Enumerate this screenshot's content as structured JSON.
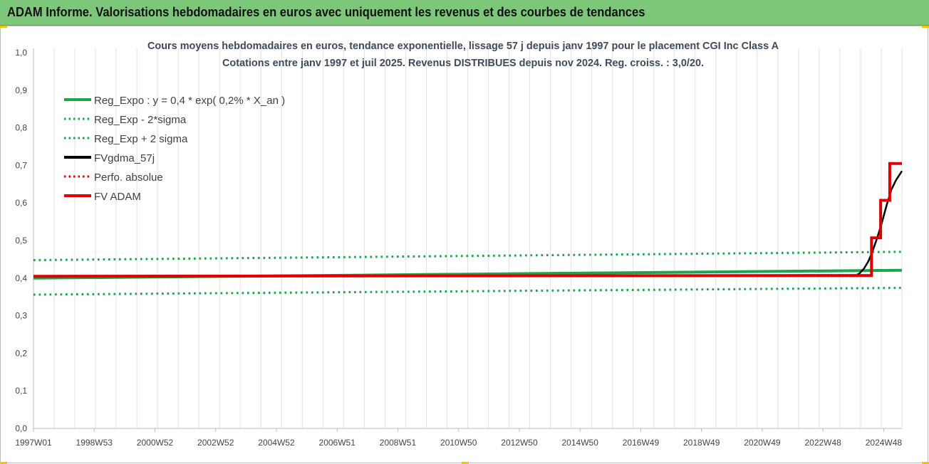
{
  "banner": {
    "title": "ADAM Informe. Valorisations hebdomadaires en euros avec uniquement les revenus et des courbes de tendances"
  },
  "colors": {
    "banner": "#7dc77a",
    "reg": "#1aa64a",
    "black": "#000000",
    "red": "#e00000"
  },
  "chart_data": {
    "type": "line",
    "title_lines": [
      "Cours moyens hebdomadaires en euros, tendance exponentielle, lissage 57 j depuis janv 1997  pour le placement CGI Inc Class A",
      "Cotations entre janv 1997 et juil 2025. Revenus DISTRIBUES depuis nov 2024. Reg. croiss. : 3,0/20."
    ],
    "y_ticks": [
      "0,0",
      "0,1",
      "0,2",
      "0,3",
      "0,4",
      "0,5",
      "0,6",
      "0,7",
      "0,8",
      "0,9",
      "1,0"
    ],
    "ylim": [
      0,
      1.0
    ],
    "x_ticks": [
      "1997W01",
      "1998W53",
      "2000W52",
      "2002W52",
      "2004W52",
      "2006W51",
      "2008W51",
      "2010W50",
      "2012W50",
      "2014W50",
      "2016W49",
      "2018W49",
      "2020W49",
      "2022W48",
      "2024W48"
    ],
    "xlim": [
      1997.0,
      2025.55
    ],
    "grid": "vertical",
    "legend_position": "top-left",
    "legend": [
      {
        "label": "Reg_Expo : y = 0,4  * exp( 0,2% *  X_an )",
        "color": "#1aa64a",
        "style": "solid"
      },
      {
        "label": "Reg_Exp - 2*sigma",
        "color": "#1aa64a",
        "style": "dotted"
      },
      {
        "label": "Reg_Exp + 2 sigma",
        "color": "#1aa64a",
        "style": "dotted"
      },
      {
        "label": "FVgdma_57j",
        "color": "#000000",
        "style": "solid"
      },
      {
        "label": "Perfo. absolue",
        "color": "#e00000",
        "style": "dotted"
      },
      {
        "label": "FV ADAM",
        "color": "#e00000",
        "style": "solid"
      }
    ],
    "series": [
      {
        "name": "Reg_Expo : y = 0,4  * exp( 0,2% *  X_an )",
        "color": "#1aa64a",
        "style": "solid",
        "width": 4,
        "x": [
          1997.0,
          2025.55
        ],
        "y": [
          0.4,
          0.421
        ]
      },
      {
        "name": "Reg_Exp - 2*sigma",
        "color": "#1aa64a",
        "style": "dotted",
        "width": 3,
        "x": [
          1997.0,
          2025.55
        ],
        "y": [
          0.356,
          0.374
        ]
      },
      {
        "name": "Reg_Exp + 2 sigma",
        "color": "#1aa64a",
        "style": "dotted",
        "width": 3,
        "x": [
          1997.0,
          2025.55
        ],
        "y": [
          0.448,
          0.47
        ]
      },
      {
        "name": "Perfo. absolue",
        "color": "#e00000",
        "style": "dotted",
        "width": 2,
        "x": [
          1997.0,
          2024.1
        ],
        "y": [
          0.405,
          0.405
        ]
      },
      {
        "name": "FVgdma_57j",
        "color": "#000000",
        "style": "solid",
        "width": 2.5,
        "x": [
          1997.0,
          2024.0,
          2024.15,
          2024.3,
          2024.45,
          2024.6,
          2024.75,
          2024.9,
          2025.05,
          2025.2,
          2025.35,
          2025.55
        ],
        "y": [
          0.405,
          0.406,
          0.412,
          0.425,
          0.445,
          0.475,
          0.51,
          0.55,
          0.595,
          0.635,
          0.66,
          0.685
        ]
      },
      {
        "name": "FV ADAM",
        "color": "#e00000",
        "style": "step",
        "width": 4,
        "x": [
          1997.0,
          2024.55,
          2024.55,
          2024.85,
          2024.85,
          2025.15,
          2025.15,
          2025.55
        ],
        "y": [
          0.405,
          0.407,
          0.507,
          0.507,
          0.607,
          0.607,
          0.705,
          0.705
        ]
      }
    ]
  }
}
